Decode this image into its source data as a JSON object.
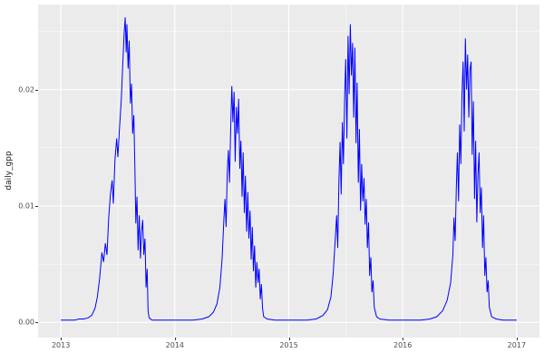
{
  "figure": {
    "background": "#FFFFFF"
  },
  "chart_data": {
    "type": "line",
    "title": "",
    "xlabel": "",
    "ylabel": "daily_gpp",
    "legend": "none",
    "grid": "on",
    "panel_background": "#EBEBEB",
    "grid_major_color": "#FFFFFF",
    "grid_minor_color": "#FFFFFF",
    "line_color": "#0000FF",
    "tick_label_color": "#4D4D4D",
    "tick_mark_color": "#333333",
    "x_domain": [
      2012.8,
      2017.2
    ],
    "y_domain": [
      -0.0013,
      0.0273
    ],
    "x_ticks": [
      {
        "value": 2013,
        "label": "2013"
      },
      {
        "value": 2014,
        "label": "2014"
      },
      {
        "value": 2015,
        "label": "2015"
      },
      {
        "value": 2016,
        "label": "2016"
      },
      {
        "value": 2017,
        "label": "2017"
      }
    ],
    "y_ticks": [
      {
        "value": 0.0,
        "label": "0.00"
      },
      {
        "value": 0.01,
        "label": "0.01"
      },
      {
        "value": 0.02,
        "label": "0.02"
      }
    ],
    "x_minor": [
      2013.5,
      2014.5,
      2015.5,
      2016.5
    ],
    "y_minor": [
      0.005,
      0.015,
      0.025
    ],
    "series": [
      {
        "name": "daily_gpp",
        "points": [
          [
            2013.0,
            0.0002
          ],
          [
            2013.04,
            0.0002
          ],
          [
            2013.08,
            0.0002
          ],
          [
            2013.12,
            0.0002
          ],
          [
            2013.16,
            0.0003
          ],
          [
            2013.2,
            0.0003
          ],
          [
            2013.24,
            0.0004
          ],
          [
            2013.27,
            0.0006
          ],
          [
            2013.3,
            0.0012
          ],
          [
            2013.32,
            0.0022
          ],
          [
            2013.34,
            0.0038
          ],
          [
            2013.36,
            0.006
          ],
          [
            2013.375,
            0.0052
          ],
          [
            2013.39,
            0.0068
          ],
          [
            2013.405,
            0.0058
          ],
          [
            2013.42,
            0.009
          ],
          [
            2013.435,
            0.011
          ],
          [
            2013.45,
            0.0122
          ],
          [
            2013.46,
            0.0102
          ],
          [
            2013.475,
            0.014
          ],
          [
            2013.49,
            0.0158
          ],
          [
            2013.5,
            0.0142
          ],
          [
            2013.515,
            0.0168
          ],
          [
            2013.53,
            0.019
          ],
          [
            2013.545,
            0.0225
          ],
          [
            2013.555,
            0.0248
          ],
          [
            2013.565,
            0.0262
          ],
          [
            2013.573,
            0.0232
          ],
          [
            2013.58,
            0.0256
          ],
          [
            2013.59,
            0.0218
          ],
          [
            2013.6,
            0.0242
          ],
          [
            2013.61,
            0.0188
          ],
          [
            2013.62,
            0.0205
          ],
          [
            2013.63,
            0.0162
          ],
          [
            2013.64,
            0.0178
          ],
          [
            2013.65,
            0.0132
          ],
          [
            2013.658,
            0.0085
          ],
          [
            2013.668,
            0.0108
          ],
          [
            2013.678,
            0.0062
          ],
          [
            2013.688,
            0.0092
          ],
          [
            2013.698,
            0.0055
          ],
          [
            2013.708,
            0.0078
          ],
          [
            2013.718,
            0.0088
          ],
          [
            2013.728,
            0.0058
          ],
          [
            2013.738,
            0.0072
          ],
          [
            2013.748,
            0.003
          ],
          [
            2013.757,
            0.0046
          ],
          [
            2013.765,
            0.001
          ],
          [
            2013.775,
            0.0004
          ],
          [
            2013.8,
            0.0002
          ],
          [
            2013.85,
            0.0002
          ],
          [
            2013.92,
            0.0002
          ],
          [
            2014.0,
            0.0002
          ],
          [
            2014.08,
            0.0002
          ],
          [
            2014.16,
            0.0002
          ],
          [
            2014.24,
            0.0003
          ],
          [
            2014.3,
            0.0005
          ],
          [
            2014.34,
            0.0009
          ],
          [
            2014.37,
            0.0016
          ],
          [
            2014.395,
            0.003
          ],
          [
            2014.415,
            0.0055
          ],
          [
            2014.43,
            0.0088
          ],
          [
            2014.44,
            0.0106
          ],
          [
            2014.45,
            0.0082
          ],
          [
            2014.46,
            0.0128
          ],
          [
            2014.47,
            0.0148
          ],
          [
            2014.48,
            0.012
          ],
          [
            2014.49,
            0.0165
          ],
          [
            2014.5,
            0.0203
          ],
          [
            2014.51,
            0.0172
          ],
          [
            2014.52,
            0.0198
          ],
          [
            2014.53,
            0.0138
          ],
          [
            2014.54,
            0.0185
          ],
          [
            2014.55,
            0.0162
          ],
          [
            2014.56,
            0.0192
          ],
          [
            2014.57,
            0.0132
          ],
          [
            2014.58,
            0.0156
          ],
          [
            2014.59,
            0.0108
          ],
          [
            2014.6,
            0.0146
          ],
          [
            2014.61,
            0.0094
          ],
          [
            2014.62,
            0.0126
          ],
          [
            2014.63,
            0.0078
          ],
          [
            2014.64,
            0.0112
          ],
          [
            2014.65,
            0.0072
          ],
          [
            2014.66,
            0.0096
          ],
          [
            2014.67,
            0.0054
          ],
          [
            2014.68,
            0.0082
          ],
          [
            2014.69,
            0.0044
          ],
          [
            2014.7,
            0.0066
          ],
          [
            2014.71,
            0.003
          ],
          [
            2014.72,
            0.0052
          ],
          [
            2014.73,
            0.0034
          ],
          [
            2014.74,
            0.0046
          ],
          [
            2014.75,
            0.002
          ],
          [
            2014.76,
            0.0033
          ],
          [
            2014.77,
            0.0012
          ],
          [
            2014.78,
            0.0005
          ],
          [
            2014.81,
            0.0003
          ],
          [
            2014.88,
            0.0002
          ],
          [
            2014.95,
            0.0002
          ],
          [
            2015.0,
            0.0002
          ],
          [
            2015.08,
            0.0002
          ],
          [
            2015.16,
            0.0002
          ],
          [
            2015.24,
            0.0003
          ],
          [
            2015.3,
            0.0006
          ],
          [
            2015.34,
            0.0011
          ],
          [
            2015.37,
            0.0022
          ],
          [
            2015.39,
            0.0042
          ],
          [
            2015.41,
            0.0075
          ],
          [
            2015.42,
            0.0092
          ],
          [
            2015.43,
            0.0064
          ],
          [
            2015.44,
            0.0121
          ],
          [
            2015.45,
            0.0155
          ],
          [
            2015.46,
            0.011
          ],
          [
            2015.47,
            0.0172
          ],
          [
            2015.48,
            0.0136
          ],
          [
            2015.49,
            0.0192
          ],
          [
            2015.5,
            0.0226
          ],
          [
            2015.51,
            0.0158
          ],
          [
            2015.52,
            0.0246
          ],
          [
            2015.53,
            0.0196
          ],
          [
            2015.54,
            0.0256
          ],
          [
            2015.55,
            0.0212
          ],
          [
            2015.56,
            0.024
          ],
          [
            2015.57,
            0.0176
          ],
          [
            2015.58,
            0.0236
          ],
          [
            2015.59,
            0.0154
          ],
          [
            2015.6,
            0.0206
          ],
          [
            2015.61,
            0.012
          ],
          [
            2015.62,
            0.0166
          ],
          [
            2015.63,
            0.0096
          ],
          [
            2015.64,
            0.0136
          ],
          [
            2015.65,
            0.0104
          ],
          [
            2015.66,
            0.0124
          ],
          [
            2015.67,
            0.0084
          ],
          [
            2015.68,
            0.0106
          ],
          [
            2015.69,
            0.0064
          ],
          [
            2015.7,
            0.0086
          ],
          [
            2015.71,
            0.004
          ],
          [
            2015.72,
            0.0056
          ],
          [
            2015.73,
            0.0026
          ],
          [
            2015.74,
            0.0036
          ],
          [
            2015.75,
            0.0013
          ],
          [
            2015.77,
            0.0005
          ],
          [
            2015.8,
            0.0003
          ],
          [
            2015.88,
            0.0002
          ],
          [
            2015.95,
            0.0002
          ],
          [
            2016.0,
            0.0002
          ],
          [
            2016.08,
            0.0002
          ],
          [
            2016.16,
            0.0002
          ],
          [
            2016.24,
            0.0003
          ],
          [
            2016.3,
            0.0005
          ],
          [
            2016.35,
            0.001
          ],
          [
            2016.39,
            0.0019
          ],
          [
            2016.42,
            0.0034
          ],
          [
            2016.44,
            0.0058
          ],
          [
            2016.45,
            0.009
          ],
          [
            2016.46,
            0.007
          ],
          [
            2016.47,
            0.0116
          ],
          [
            2016.48,
            0.0146
          ],
          [
            2016.49,
            0.0104
          ],
          [
            2016.5,
            0.017
          ],
          [
            2016.51,
            0.0136
          ],
          [
            2016.52,
            0.0194
          ],
          [
            2016.53,
            0.0224
          ],
          [
            2016.54,
            0.0164
          ],
          [
            2016.55,
            0.0244
          ],
          [
            2016.56,
            0.02
          ],
          [
            2016.57,
            0.023
          ],
          [
            2016.58,
            0.0176
          ],
          [
            2016.59,
            0.0216
          ],
          [
            2016.6,
            0.0224
          ],
          [
            2016.61,
            0.0144
          ],
          [
            2016.62,
            0.019
          ],
          [
            2016.63,
            0.0106
          ],
          [
            2016.64,
            0.0156
          ],
          [
            2016.65,
            0.0086
          ],
          [
            2016.66,
            0.0126
          ],
          [
            2016.67,
            0.0146
          ],
          [
            2016.68,
            0.0094
          ],
          [
            2016.69,
            0.0116
          ],
          [
            2016.7,
            0.0064
          ],
          [
            2016.71,
            0.0092
          ],
          [
            2016.72,
            0.004
          ],
          [
            2016.73,
            0.0056
          ],
          [
            2016.74,
            0.0026
          ],
          [
            2016.75,
            0.0036
          ],
          [
            2016.76,
            0.0013
          ],
          [
            2016.78,
            0.0005
          ],
          [
            2016.82,
            0.0003
          ],
          [
            2016.88,
            0.0002
          ],
          [
            2016.94,
            0.0002
          ],
          [
            2017.0,
            0.0002
          ]
        ]
      }
    ]
  }
}
